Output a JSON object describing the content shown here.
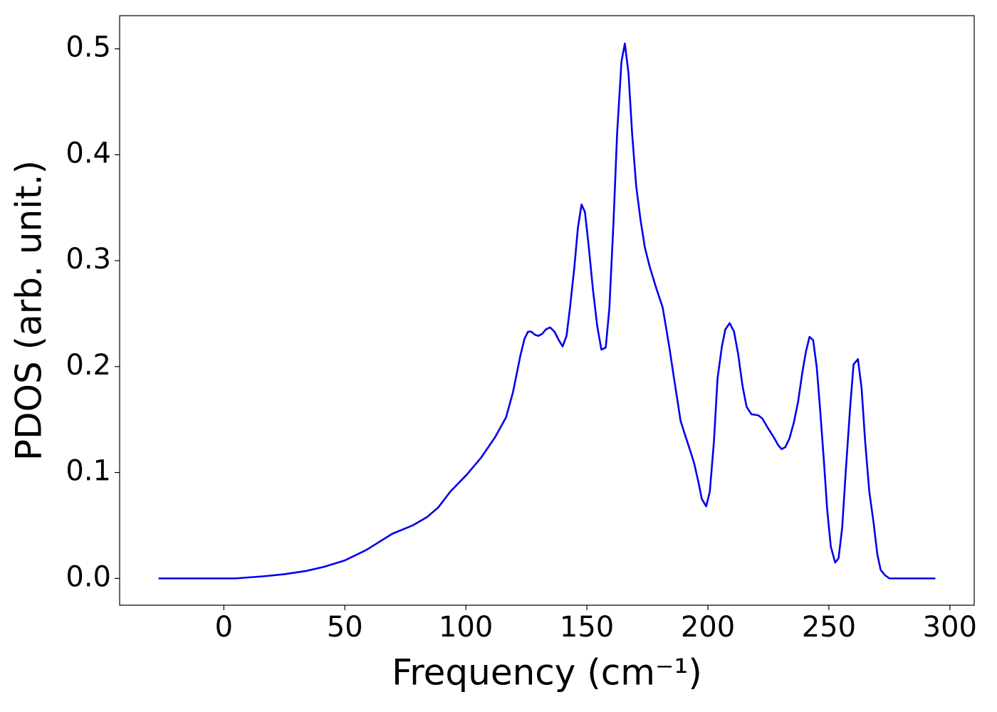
{
  "chart_data": {
    "type": "line",
    "xlabel": "Frequency (cm⁻¹)",
    "ylabel": "PDOS (arb. unit.)",
    "x": [
      -27,
      4.7,
      16.5,
      25,
      34,
      41.5,
      50,
      59,
      69.5,
      78,
      84,
      88.6,
      93.6,
      100.4,
      106.3,
      112,
      116.6,
      119.5,
      122.5,
      124.2,
      125.7,
      127,
      128.6,
      130,
      131.6,
      133,
      134.8,
      136.6,
      138.4,
      140,
      141.6,
      143,
      144.8,
      146.3,
      147.8,
      149.2,
      150.7,
      152.5,
      154.3,
      156,
      157.8,
      159.3,
      161,
      162.5,
      164.3,
      165.7,
      167.2,
      168.7,
      170.4,
      172.2,
      174,
      176,
      178.4,
      181.3,
      182.8,
      184.3,
      186,
      187.5,
      188.7,
      190.5,
      192.5,
      194.3,
      196,
      197.5,
      199.3,
      200.8,
      202.5,
      204,
      205.8,
      207.2,
      209,
      210.8,
      212.5,
      214.3,
      216,
      218,
      220.8,
      222.5,
      224.8,
      227.3,
      229,
      230.5,
      232,
      233.7,
      235.5,
      237.3,
      239,
      240.5,
      242,
      243.5,
      245,
      246.4,
      248,
      249.3,
      250.8,
      252.6,
      254,
      255.5,
      257,
      258.8,
      260.2,
      262,
      263.5,
      265,
      266.7,
      268.5,
      270,
      271.4,
      273.2,
      275,
      294
    ],
    "series": [
      {
        "color": "#0000ee",
        "values": [
          0,
          0,
          0.002,
          0.004,
          0.007,
          0.011,
          0.017,
          0.027,
          0.042,
          0.05,
          0.058,
          0.067,
          0.082,
          0.098,
          0.114,
          0.133,
          0.152,
          0.176,
          0.21,
          0.226,
          0.233,
          0.233,
          0.23,
          0.229,
          0.231,
          0.235,
          0.237,
          0.233,
          0.225,
          0.219,
          0.229,
          0.255,
          0.293,
          0.331,
          0.353,
          0.346,
          0.315,
          0.273,
          0.238,
          0.216,
          0.218,
          0.255,
          0.336,
          0.42,
          0.488,
          0.505,
          0.477,
          0.42,
          0.37,
          0.338,
          0.312,
          0.294,
          0.276,
          0.256,
          0.236,
          0.215,
          0.189,
          0.167,
          0.149,
          0.136,
          0.122,
          0.109,
          0.092,
          0.075,
          0.068,
          0.082,
          0.129,
          0.189,
          0.219,
          0.235,
          0.241,
          0.233,
          0.212,
          0.182,
          0.162,
          0.155,
          0.154,
          0.151,
          0.142,
          0.133,
          0.126,
          0.122,
          0.124,
          0.132,
          0.147,
          0.167,
          0.194,
          0.214,
          0.228,
          0.225,
          0.199,
          0.159,
          0.109,
          0.065,
          0.03,
          0.015,
          0.019,
          0.048,
          0.102,
          0.162,
          0.202,
          0.207,
          0.18,
          0.129,
          0.082,
          0.052,
          0.023,
          0.008,
          0.003,
          0,
          0
        ]
      }
    ],
    "xlim": [
      -43.05,
      310.05
    ],
    "ylim": [
      -0.0253,
      0.5313
    ],
    "xticks": [
      0,
      50,
      100,
      150,
      200,
      250,
      300
    ],
    "yticks": [
      {
        "value": 0,
        "label": "0.0"
      },
      0.1,
      0.2,
      0.3,
      0.4,
      0.5
    ]
  }
}
